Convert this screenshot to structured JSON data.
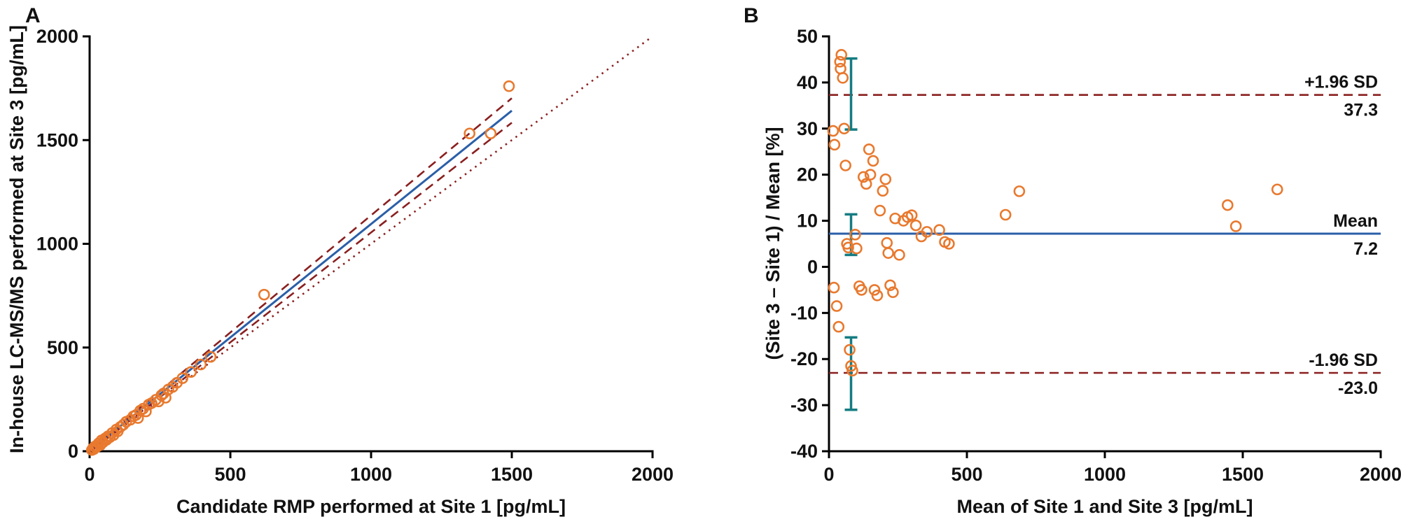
{
  "chart_data": [
    {
      "type": "scatter",
      "panel_label": "A",
      "xlabel": "Candidate RMP performed at Site 1 [pg/mL]",
      "ylabel": "In-house LC-MS/MS performed at Site 3 [pg/mL]",
      "xlim": [
        0,
        2000
      ],
      "ylim": [
        0,
        2000
      ],
      "xticks": [
        0,
        500,
        1000,
        1500,
        2000
      ],
      "yticks": [
        0,
        500,
        1000,
        1500,
        2000
      ],
      "point_color": "#e8792e",
      "points": [
        [
          8,
          6
        ],
        [
          12,
          14
        ],
        [
          15,
          10
        ],
        [
          18,
          22
        ],
        [
          22,
          18
        ],
        [
          25,
          28
        ],
        [
          28,
          24
        ],
        [
          32,
          38
        ],
        [
          38,
          30
        ],
        [
          42,
          52
        ],
        [
          48,
          44
        ],
        [
          55,
          62
        ],
        [
          60,
          55
        ],
        [
          65,
          72
        ],
        [
          72,
          68
        ],
        [
          80,
          88
        ],
        [
          85,
          78
        ],
        [
          95,
          105
        ],
        [
          100,
          96
        ],
        [
          110,
          118
        ],
        [
          120,
          128
        ],
        [
          130,
          142
        ],
        [
          145,
          152
        ],
        [
          155,
          168
        ],
        [
          165,
          175
        ],
        [
          172,
          160
        ],
        [
          180,
          196
        ],
        [
          190,
          205
        ],
        [
          200,
          192
        ],
        [
          210,
          225
        ],
        [
          220,
          232
        ],
        [
          235,
          248
        ],
        [
          245,
          240
        ],
        [
          255,
          270
        ],
        [
          262,
          278
        ],
        [
          270,
          258
        ],
        [
          280,
          298
        ],
        [
          295,
          310
        ],
        [
          310,
          330
        ],
        [
          330,
          352
        ],
        [
          360,
          382
        ],
        [
          395,
          418
        ],
        [
          430,
          455
        ],
        [
          620,
          755
        ],
        [
          1350,
          1532
        ],
        [
          1425,
          1532
        ],
        [
          1490,
          1760
        ]
      ],
      "lines": [
        {
          "name": "regression-line",
          "color": "#2b5fa8",
          "style": "solid",
          "width": 3,
          "points": [
            [
              0,
              2
            ],
            [
              1500,
              1642
            ]
          ]
        },
        {
          "name": "ci-upper-line",
          "color": "#8a1f1f",
          "style": "dashed",
          "width": 2.6,
          "points": [
            [
              0,
              8
            ],
            [
              1500,
              1702
            ]
          ]
        },
        {
          "name": "ci-lower-line",
          "color": "#8a1f1f",
          "style": "dashed",
          "width": 2.6,
          "points": [
            [
              0,
              -4
            ],
            [
              1500,
              1584
            ]
          ]
        },
        {
          "name": "identity-line",
          "color": "#8a1f1f",
          "style": "dotted",
          "width": 2.6,
          "points": [
            [
              0,
              0
            ],
            [
              1990,
              1990
            ]
          ]
        }
      ]
    },
    {
      "type": "scatter",
      "panel_label": "B",
      "xlabel": "Mean of Site 1 and Site 3 [pg/mL]",
      "ylabel": "(Site 3 – Site 1) / Mean [%]",
      "xlim": [
        0,
        2000
      ],
      "ylim": [
        -40,
        50
      ],
      "xticks": [
        0,
        500,
        1000,
        1500,
        2000
      ],
      "yticks": [
        -40,
        -30,
        -20,
        -10,
        0,
        10,
        20,
        30,
        40,
        50
      ],
      "point_color": "#e8792e",
      "points": [
        [
          15,
          29.5
        ],
        [
          20,
          26.5
        ],
        [
          18,
          -4.5
        ],
        [
          28,
          -8.5
        ],
        [
          35,
          -13
        ],
        [
          40,
          44.5
        ],
        [
          45,
          46
        ],
        [
          50,
          41
        ],
        [
          42,
          43
        ],
        [
          55,
          30
        ],
        [
          60,
          22
        ],
        [
          65,
          5
        ],
        [
          70,
          4.2
        ],
        [
          75,
          -18
        ],
        [
          80,
          -21.5
        ],
        [
          85,
          -22.5
        ],
        [
          95,
          7
        ],
        [
          100,
          4
        ],
        [
          110,
          -4.2
        ],
        [
          118,
          -5
        ],
        [
          125,
          19.5
        ],
        [
          135,
          18
        ],
        [
          145,
          25.5
        ],
        [
          150,
          20
        ],
        [
          160,
          23
        ],
        [
          165,
          -5
        ],
        [
          175,
          -6.2
        ],
        [
          185,
          12.2
        ],
        [
          195,
          16.5
        ],
        [
          205,
          19
        ],
        [
          210,
          5.2
        ],
        [
          215,
          3
        ],
        [
          222,
          -4
        ],
        [
          232,
          -5.5
        ],
        [
          240,
          10.5
        ],
        [
          255,
          2.6
        ],
        [
          270,
          10
        ],
        [
          285,
          10.8
        ],
        [
          300,
          11.2
        ],
        [
          315,
          9
        ],
        [
          335,
          6.6
        ],
        [
          355,
          7.6
        ],
        [
          400,
          8
        ],
        [
          420,
          5.4
        ],
        [
          435,
          5
        ],
        [
          640,
          11.3
        ],
        [
          690,
          16.4
        ],
        [
          1445,
          13.4
        ],
        [
          1475,
          8.8
        ],
        [
          1625,
          16.8
        ]
      ],
      "lines": [
        {
          "name": "upper-loa-line",
          "color": "#8a1f1f",
          "style": "dashed",
          "width": 2.6,
          "points": [
            [
              0,
              37.3
            ],
            [
              2000,
              37.3
            ]
          ]
        },
        {
          "name": "mean-line",
          "color": "#2b5fa8",
          "style": "solid",
          "width": 3,
          "points": [
            [
              0,
              7.2
            ],
            [
              2000,
              7.2
            ]
          ]
        },
        {
          "name": "lower-loa-line",
          "color": "#8a1f1f",
          "style": "dashed",
          "width": 2.6,
          "points": [
            [
              0,
              -23.0
            ],
            [
              2000,
              -23.0
            ]
          ]
        }
      ],
      "annotations": [
        {
          "text": "+1.96 SD",
          "y": 37.3,
          "side": "above"
        },
        {
          "text": "37.3",
          "y": 37.3,
          "side": "below"
        },
        {
          "text": "Mean",
          "y": 7.2,
          "side": "above"
        },
        {
          "text": "7.2",
          "y": 7.2,
          "side": "below"
        },
        {
          "text": "-1.96 SD",
          "y": -23.0,
          "side": "above"
        },
        {
          "text": "-23.0",
          "y": -23.0,
          "side": "below"
        }
      ],
      "error_bars": {
        "color": "#157c82",
        "x": 80,
        "bars": [
          [
            29.8,
            45.2
          ],
          [
            2.6,
            11.4
          ],
          [
            -31.0,
            -15.3
          ]
        ]
      },
      "stats": {
        "mean_bias_pct": 7.2,
        "upper_loa_pct": 37.3,
        "lower_loa_pct": -23.0
      }
    }
  ]
}
